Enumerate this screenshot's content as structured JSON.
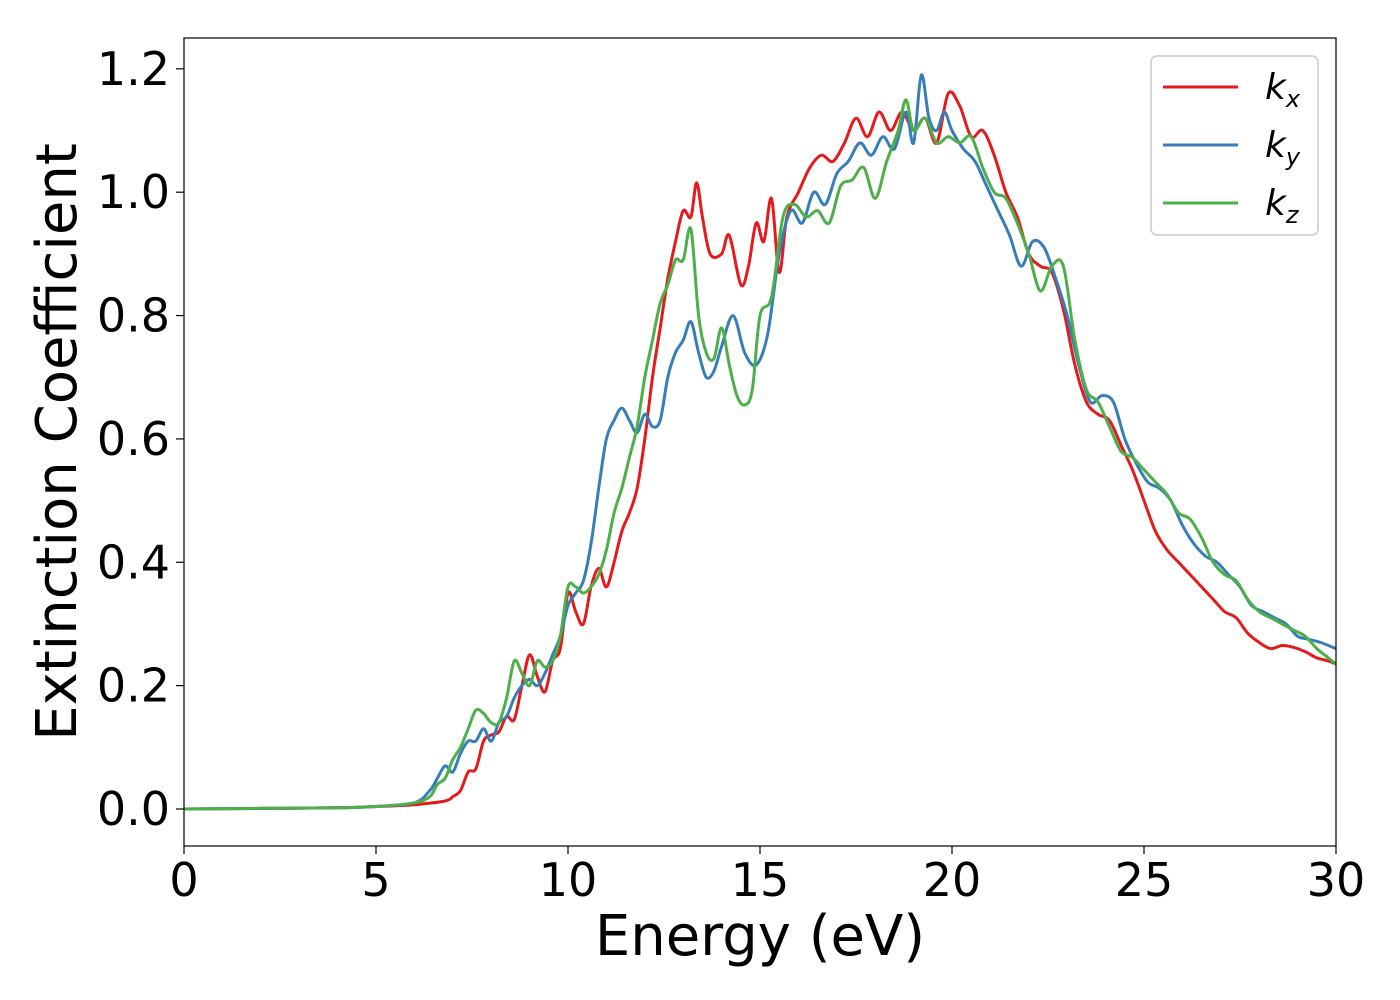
{
  "chart_data": {
    "type": "line",
    "title": "",
    "xlabel": "Energy (eV)",
    "ylabel": "Extinction Coefficient",
    "xlim": [
      0,
      30
    ],
    "ylim": [
      -0.06,
      1.25
    ],
    "xticks": [
      0,
      5,
      10,
      15,
      20,
      25,
      30
    ],
    "xtick_labels": [
      "0",
      "5",
      "10",
      "15",
      "20",
      "25",
      "30"
    ],
    "yticks": [
      0.0,
      0.2,
      0.4,
      0.6,
      0.8,
      1.0,
      1.2
    ],
    "ytick_labels": [
      "0.0",
      "0.2",
      "0.4",
      "0.6",
      "0.8",
      "1.0",
      "1.2"
    ],
    "grid": false,
    "legend": {
      "placement": "top-right"
    },
    "series": [
      {
        "name": "k_x",
        "label_main": "k",
        "label_sub": "x",
        "color": "#e41a1c",
        "points": [
          [
            0,
            0.0
          ],
          [
            2,
            0.001
          ],
          [
            4,
            0.002
          ],
          [
            5,
            0.004
          ],
          [
            6,
            0.007
          ],
          [
            6.8,
            0.013
          ],
          [
            7.0,
            0.02
          ],
          [
            7.2,
            0.03
          ],
          [
            7.4,
            0.06
          ],
          [
            7.6,
            0.065
          ],
          [
            7.8,
            0.11
          ],
          [
            8.0,
            0.12
          ],
          [
            8.2,
            0.125
          ],
          [
            8.4,
            0.15
          ],
          [
            8.6,
            0.145
          ],
          [
            8.8,
            0.2
          ],
          [
            9.0,
            0.25
          ],
          [
            9.2,
            0.215
          ],
          [
            9.4,
            0.19
          ],
          [
            9.6,
            0.24
          ],
          [
            9.8,
            0.26
          ],
          [
            10.0,
            0.35
          ],
          [
            10.2,
            0.32
          ],
          [
            10.4,
            0.3
          ],
          [
            10.6,
            0.36
          ],
          [
            10.8,
            0.39
          ],
          [
            11.0,
            0.36
          ],
          [
            11.2,
            0.4
          ],
          [
            11.4,
            0.45
          ],
          [
            11.6,
            0.48
          ],
          [
            11.8,
            0.52
          ],
          [
            12.0,
            0.6
          ],
          [
            12.2,
            0.7
          ],
          [
            12.4,
            0.78
          ],
          [
            12.6,
            0.86
          ],
          [
            12.8,
            0.92
          ],
          [
            13.0,
            0.97
          ],
          [
            13.2,
            0.96
          ],
          [
            13.35,
            1.015
          ],
          [
            13.5,
            0.96
          ],
          [
            13.7,
            0.9
          ],
          [
            14.0,
            0.9
          ],
          [
            14.2,
            0.93
          ],
          [
            14.5,
            0.85
          ],
          [
            14.7,
            0.88
          ],
          [
            14.9,
            0.95
          ],
          [
            15.1,
            0.92
          ],
          [
            15.3,
            0.99
          ],
          [
            15.5,
            0.87
          ],
          [
            15.7,
            0.96
          ],
          [
            16.0,
            1.0
          ],
          [
            16.3,
            1.04
          ],
          [
            16.6,
            1.06
          ],
          [
            16.9,
            1.05
          ],
          [
            17.2,
            1.08
          ],
          [
            17.5,
            1.12
          ],
          [
            17.8,
            1.09
          ],
          [
            18.1,
            1.13
          ],
          [
            18.4,
            1.1
          ],
          [
            18.7,
            1.13
          ],
          [
            19.0,
            1.1
          ],
          [
            19.3,
            1.12
          ],
          [
            19.6,
            1.08
          ],
          [
            19.9,
            1.16
          ],
          [
            20.2,
            1.14
          ],
          [
            20.5,
            1.09
          ],
          [
            20.8,
            1.1
          ],
          [
            21.1,
            1.06
          ],
          [
            21.4,
            1.0
          ],
          [
            21.7,
            0.96
          ],
          [
            22.0,
            0.9
          ],
          [
            22.3,
            0.88
          ],
          [
            22.6,
            0.87
          ],
          [
            22.9,
            0.81
          ],
          [
            23.2,
            0.72
          ],
          [
            23.5,
            0.66
          ],
          [
            23.8,
            0.64
          ],
          [
            24.1,
            0.63
          ],
          [
            24.4,
            0.59
          ],
          [
            24.7,
            0.55
          ],
          [
            25.0,
            0.5
          ],
          [
            25.3,
            0.45
          ],
          [
            25.6,
            0.42
          ],
          [
            25.9,
            0.4
          ],
          [
            26.2,
            0.38
          ],
          [
            26.5,
            0.36
          ],
          [
            26.8,
            0.34
          ],
          [
            27.1,
            0.32
          ],
          [
            27.4,
            0.31
          ],
          [
            27.7,
            0.285
          ],
          [
            28.0,
            0.27
          ],
          [
            28.3,
            0.26
          ],
          [
            28.6,
            0.265
          ],
          [
            28.9,
            0.262
          ],
          [
            29.2,
            0.255
          ],
          [
            29.5,
            0.245
          ],
          [
            29.8,
            0.24
          ],
          [
            30.0,
            0.235
          ]
        ]
      },
      {
        "name": "k_y",
        "label_main": "k",
        "label_sub": "y",
        "color": "#377eb8",
        "points": [
          [
            0,
            0.0
          ],
          [
            2,
            0.001
          ],
          [
            4,
            0.002
          ],
          [
            5,
            0.004
          ],
          [
            6,
            0.01
          ],
          [
            6.4,
            0.03
          ],
          [
            6.6,
            0.05
          ],
          [
            6.8,
            0.07
          ],
          [
            7.0,
            0.06
          ],
          [
            7.2,
            0.09
          ],
          [
            7.4,
            0.11
          ],
          [
            7.6,
            0.11
          ],
          [
            7.8,
            0.13
          ],
          [
            8.0,
            0.11
          ],
          [
            8.2,
            0.14
          ],
          [
            8.4,
            0.15
          ],
          [
            8.6,
            0.18
          ],
          [
            8.8,
            0.2
          ],
          [
            9.0,
            0.21
          ],
          [
            9.2,
            0.2
          ],
          [
            9.4,
            0.22
          ],
          [
            9.6,
            0.25
          ],
          [
            9.8,
            0.28
          ],
          [
            10.0,
            0.33
          ],
          [
            10.2,
            0.35
          ],
          [
            10.4,
            0.37
          ],
          [
            10.6,
            0.43
          ],
          [
            10.8,
            0.52
          ],
          [
            11.0,
            0.6
          ],
          [
            11.2,
            0.63
          ],
          [
            11.4,
            0.65
          ],
          [
            11.6,
            0.63
          ],
          [
            11.8,
            0.61
          ],
          [
            12.0,
            0.64
          ],
          [
            12.2,
            0.62
          ],
          [
            12.4,
            0.63
          ],
          [
            12.6,
            0.7
          ],
          [
            12.8,
            0.74
          ],
          [
            13.0,
            0.76
          ],
          [
            13.2,
            0.79
          ],
          [
            13.4,
            0.74
          ],
          [
            13.6,
            0.7
          ],
          [
            13.8,
            0.71
          ],
          [
            14.0,
            0.75
          ],
          [
            14.3,
            0.8
          ],
          [
            14.6,
            0.74
          ],
          [
            14.9,
            0.72
          ],
          [
            15.2,
            0.77
          ],
          [
            15.5,
            0.9
          ],
          [
            15.8,
            0.97
          ],
          [
            16.1,
            0.95
          ],
          [
            16.4,
            1.0
          ],
          [
            16.7,
            0.98
          ],
          [
            17.0,
            1.03
          ],
          [
            17.3,
            1.05
          ],
          [
            17.6,
            1.08
          ],
          [
            17.9,
            1.06
          ],
          [
            18.2,
            1.09
          ],
          [
            18.5,
            1.07
          ],
          [
            18.8,
            1.13
          ],
          [
            19.0,
            1.08
          ],
          [
            19.2,
            1.19
          ],
          [
            19.4,
            1.12
          ],
          [
            19.6,
            1.1
          ],
          [
            19.8,
            1.13
          ],
          [
            20.0,
            1.1
          ],
          [
            20.3,
            1.07
          ],
          [
            20.6,
            1.05
          ],
          [
            20.9,
            1.01
          ],
          [
            21.2,
            0.97
          ],
          [
            21.5,
            0.93
          ],
          [
            21.8,
            0.88
          ],
          [
            22.1,
            0.92
          ],
          [
            22.4,
            0.91
          ],
          [
            22.7,
            0.86
          ],
          [
            23.0,
            0.8
          ],
          [
            23.3,
            0.72
          ],
          [
            23.6,
            0.66
          ],
          [
            23.9,
            0.67
          ],
          [
            24.2,
            0.66
          ],
          [
            24.5,
            0.6
          ],
          [
            24.8,
            0.56
          ],
          [
            25.1,
            0.53
          ],
          [
            25.4,
            0.52
          ],
          [
            25.7,
            0.5
          ],
          [
            26.0,
            0.46
          ],
          [
            26.3,
            0.43
          ],
          [
            26.6,
            0.41
          ],
          [
            26.9,
            0.4
          ],
          [
            27.2,
            0.38
          ],
          [
            27.5,
            0.36
          ],
          [
            27.8,
            0.33
          ],
          [
            28.1,
            0.32
          ],
          [
            28.4,
            0.31
          ],
          [
            28.7,
            0.3
          ],
          [
            29.0,
            0.28
          ],
          [
            29.3,
            0.275
          ],
          [
            29.6,
            0.27
          ],
          [
            30.0,
            0.26
          ]
        ]
      },
      {
        "name": "k_z",
        "label_main": "k",
        "label_sub": "z",
        "color": "#4daf4a",
        "points": [
          [
            0,
            0.0
          ],
          [
            2,
            0.001
          ],
          [
            4,
            0.002
          ],
          [
            5,
            0.004
          ],
          [
            6,
            0.01
          ],
          [
            6.4,
            0.02
          ],
          [
            6.6,
            0.04
          ],
          [
            6.8,
            0.05
          ],
          [
            7.0,
            0.08
          ],
          [
            7.2,
            0.1
          ],
          [
            7.4,
            0.13
          ],
          [
            7.6,
            0.16
          ],
          [
            7.8,
            0.155
          ],
          [
            8.0,
            0.14
          ],
          [
            8.2,
            0.14
          ],
          [
            8.4,
            0.18
          ],
          [
            8.6,
            0.24
          ],
          [
            8.8,
            0.22
          ],
          [
            9.0,
            0.2
          ],
          [
            9.2,
            0.24
          ],
          [
            9.4,
            0.23
          ],
          [
            9.6,
            0.24
          ],
          [
            9.8,
            0.28
          ],
          [
            10.0,
            0.36
          ],
          [
            10.2,
            0.36
          ],
          [
            10.4,
            0.35
          ],
          [
            10.6,
            0.36
          ],
          [
            10.8,
            0.38
          ],
          [
            11.0,
            0.42
          ],
          [
            11.2,
            0.48
          ],
          [
            11.4,
            0.52
          ],
          [
            11.6,
            0.57
          ],
          [
            11.8,
            0.62
          ],
          [
            12.0,
            0.7
          ],
          [
            12.2,
            0.76
          ],
          [
            12.4,
            0.82
          ],
          [
            12.6,
            0.85
          ],
          [
            12.8,
            0.89
          ],
          [
            13.0,
            0.89
          ],
          [
            13.2,
            0.94
          ],
          [
            13.4,
            0.8
          ],
          [
            13.6,
            0.74
          ],
          [
            13.8,
            0.73
          ],
          [
            14.0,
            0.78
          ],
          [
            14.2,
            0.72
          ],
          [
            14.4,
            0.67
          ],
          [
            14.6,
            0.655
          ],
          [
            14.8,
            0.68
          ],
          [
            15.0,
            0.8
          ],
          [
            15.3,
            0.83
          ],
          [
            15.6,
            0.96
          ],
          [
            15.9,
            0.98
          ],
          [
            16.2,
            0.96
          ],
          [
            16.5,
            0.97
          ],
          [
            16.8,
            0.95
          ],
          [
            17.1,
            1.01
          ],
          [
            17.4,
            1.02
          ],
          [
            17.7,
            1.04
          ],
          [
            18.0,
            0.99
          ],
          [
            18.3,
            1.05
          ],
          [
            18.6,
            1.1
          ],
          [
            18.8,
            1.15
          ],
          [
            19.0,
            1.1
          ],
          [
            19.3,
            1.12
          ],
          [
            19.6,
            1.08
          ],
          [
            19.9,
            1.09
          ],
          [
            20.2,
            1.08
          ],
          [
            20.5,
            1.09
          ],
          [
            20.8,
            1.04
          ],
          [
            21.1,
            1.0
          ],
          [
            21.4,
            0.99
          ],
          [
            21.7,
            0.95
          ],
          [
            22.0,
            0.9
          ],
          [
            22.3,
            0.84
          ],
          [
            22.6,
            0.88
          ],
          [
            22.9,
            0.88
          ],
          [
            23.2,
            0.76
          ],
          [
            23.5,
            0.68
          ],
          [
            23.8,
            0.66
          ],
          [
            24.1,
            0.62
          ],
          [
            24.4,
            0.58
          ],
          [
            24.7,
            0.57
          ],
          [
            25.0,
            0.55
          ],
          [
            25.3,
            0.53
          ],
          [
            25.6,
            0.51
          ],
          [
            25.9,
            0.48
          ],
          [
            26.2,
            0.47
          ],
          [
            26.5,
            0.44
          ],
          [
            26.8,
            0.4
          ],
          [
            27.1,
            0.38
          ],
          [
            27.4,
            0.37
          ],
          [
            27.7,
            0.34
          ],
          [
            28.0,
            0.32
          ],
          [
            28.3,
            0.31
          ],
          [
            28.6,
            0.3
          ],
          [
            28.9,
            0.29
          ],
          [
            29.2,
            0.28
          ],
          [
            29.5,
            0.26
          ],
          [
            29.8,
            0.245
          ],
          [
            30.0,
            0.235
          ]
        ]
      }
    ]
  }
}
